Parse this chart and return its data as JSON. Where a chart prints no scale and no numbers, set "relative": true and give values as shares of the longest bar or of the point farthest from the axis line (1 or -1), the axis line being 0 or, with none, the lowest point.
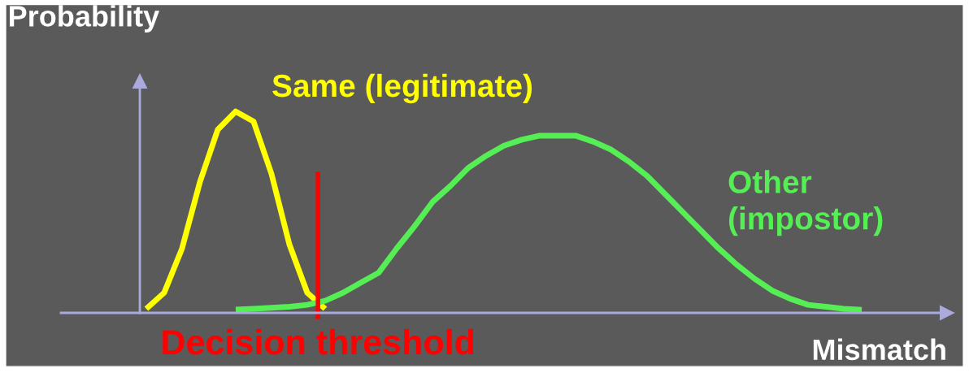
{
  "chart_data": {
    "type": "line",
    "relative": true,
    "ylabel": "Probability",
    "xlabel": "Mismatch",
    "legend": false,
    "grid": false,
    "categories": [
      null,
      null,
      null,
      null,
      null,
      null,
      null,
      null,
      null,
      null,
      null,
      null,
      null,
      null,
      null,
      null,
      null,
      null,
      null,
      null,
      null,
      null,
      null,
      null,
      null,
      null,
      null,
      null,
      null,
      null,
      null,
      null,
      null,
      null,
      null,
      null,
      null,
      null,
      null,
      null,
      null,
      null
    ],
    "series": [
      {
        "name": "Same (legitimate)",
        "color": "#ffff00",
        "values": [
          0.02,
          0.1,
          0.32,
          0.65,
          0.91,
          1.0,
          0.95,
          0.69,
          0.34,
          0.1,
          0.02,
          null,
          null,
          null,
          null,
          null,
          null,
          null,
          null,
          null,
          null,
          null,
          null,
          null,
          null,
          null,
          null,
          null,
          null,
          null,
          null,
          null,
          null,
          null,
          null,
          null,
          null,
          null,
          null,
          null,
          null,
          null
        ]
      },
      {
        "name": "Other (impostor)",
        "color": "#55ee55",
        "values": [
          null,
          null,
          null,
          null,
          null,
          0.016,
          0.02,
          0.025,
          0.03,
          0.04,
          0.06,
          0.1,
          0.15,
          0.2,
          0.32,
          0.43,
          0.55,
          0.63,
          0.72,
          0.78,
          0.83,
          0.86,
          0.88,
          0.88,
          0.88,
          0.85,
          0.81,
          0.75,
          0.68,
          0.59,
          0.5,
          0.41,
          0.32,
          0.24,
          0.17,
          0.11,
          0.07,
          0.04,
          0.03,
          0.02,
          0.015,
          null
        ]
      }
    ],
    "annotations": [
      "Decision threshold"
    ]
  }
}
